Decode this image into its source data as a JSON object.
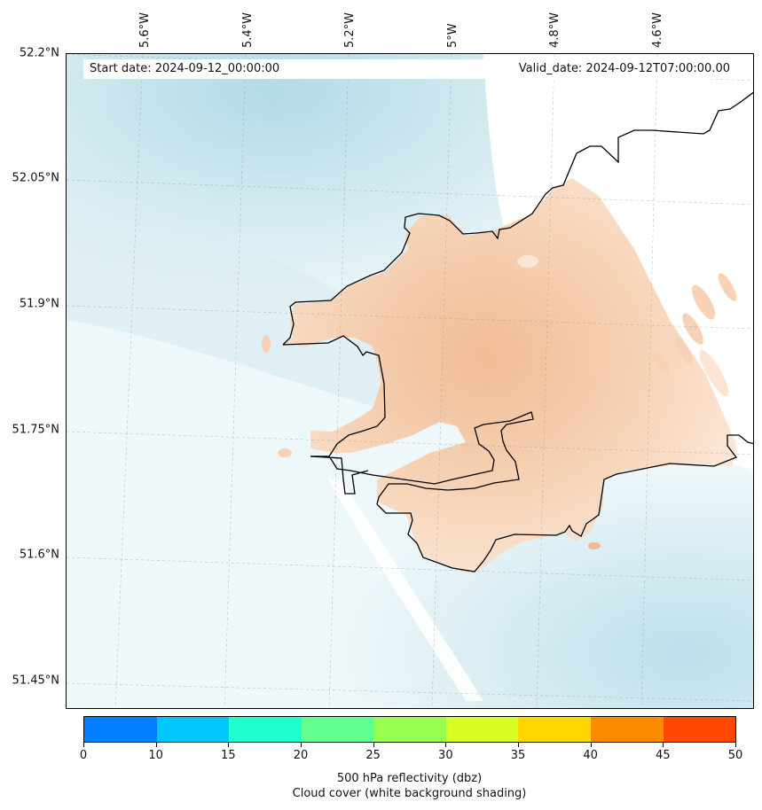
{
  "map": {
    "start_date": "Start date: 2024-09-12_00:00:00",
    "valid_date": "Valid_date: 2024-09-12T07:00:00.00",
    "lat_labels": [
      "52.2°N",
      "52.05°N",
      "51.9°N",
      "51.75°N",
      "51.6°N",
      "51.45°N"
    ],
    "lon_labels": [
      "5.6°W",
      "5.4°W",
      "5.2°W",
      "5°W",
      "4.8°W",
      "4.6°W"
    ],
    "colors": {
      "cloud_light": "#cfe8ef",
      "cloud_mid": "#b7dde7",
      "land_reflect": "#f7d2b4",
      "land_reflect_dark": "#f0b98f",
      "coastline": "#000000"
    }
  },
  "colorbar": {
    "ticks": [
      "0",
      "10",
      "15",
      "20",
      "25",
      "30",
      "35",
      "40",
      "45",
      "50"
    ],
    "colors": [
      "#0080ff",
      "#00c8ff",
      "#20ffd0",
      "#60ff90",
      "#98ff50",
      "#d8ff20",
      "#ffd800",
      "#ff8c00",
      "#ff4800"
    ],
    "label_line1": "500 hPa reflectivity (dbz)",
    "label_line2": "Cloud cover (white background shading)"
  }
}
